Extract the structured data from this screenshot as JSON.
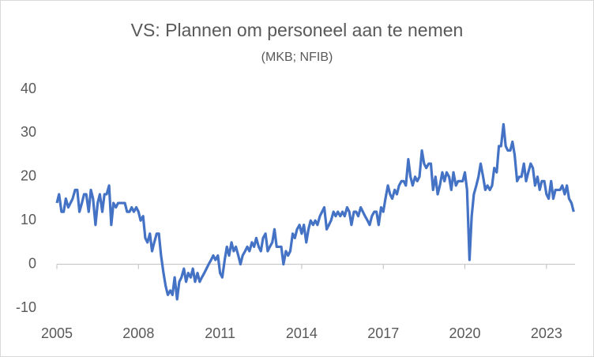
{
  "chart_data": {
    "type": "line",
    "title": "VS: Plannen om personeel aan te nemen",
    "subtitle": "(MKB; NFIB)",
    "xlim": [
      2005,
      2024.05
    ],
    "xticks": [
      2005,
      2008,
      2011,
      2014,
      2017,
      2020,
      2023
    ],
    "ylim": [
      -10,
      40
    ],
    "yticks": [
      -10,
      0,
      10,
      20,
      30,
      40
    ],
    "grid": false,
    "series": [
      {
        "color": "#4472c4",
        "x": [
          2005.0,
          2005.08,
          2005.17,
          2005.25,
          2005.33,
          2005.42,
          2005.5,
          2005.58,
          2005.67,
          2005.75,
          2005.83,
          2005.92,
          2006.0,
          2006.08,
          2006.17,
          2006.25,
          2006.33,
          2006.42,
          2006.5,
          2006.58,
          2006.67,
          2006.75,
          2006.83,
          2006.92,
          2007.0,
          2007.08,
          2007.17,
          2007.25,
          2007.33,
          2007.42,
          2007.5,
          2007.58,
          2007.67,
          2007.75,
          2007.83,
          2007.92,
          2008.0,
          2008.08,
          2008.17,
          2008.25,
          2008.33,
          2008.42,
          2008.5,
          2008.58,
          2008.67,
          2008.75,
          2008.83,
          2008.92,
          2009.0,
          2009.08,
          2009.17,
          2009.25,
          2009.33,
          2009.42,
          2009.5,
          2009.58,
          2009.67,
          2009.75,
          2009.83,
          2009.92,
          2010.0,
          2010.08,
          2010.17,
          2010.25,
          2010.33,
          2010.42,
          2010.5,
          2010.58,
          2010.67,
          2010.75,
          2010.83,
          2010.92,
          2011.0,
          2011.08,
          2011.17,
          2011.25,
          2011.33,
          2011.42,
          2011.5,
          2011.58,
          2011.67,
          2011.75,
          2011.83,
          2011.92,
          2012.0,
          2012.08,
          2012.17,
          2012.25,
          2012.33,
          2012.42,
          2012.5,
          2012.58,
          2012.67,
          2012.75,
          2012.83,
          2012.92,
          2013.0,
          2013.08,
          2013.17,
          2013.25,
          2013.33,
          2013.42,
          2013.5,
          2013.58,
          2013.67,
          2013.75,
          2013.83,
          2013.92,
          2014.0,
          2014.08,
          2014.17,
          2014.25,
          2014.33,
          2014.42,
          2014.5,
          2014.58,
          2014.67,
          2014.75,
          2014.83,
          2014.92,
          2015.0,
          2015.08,
          2015.17,
          2015.25,
          2015.33,
          2015.42,
          2015.5,
          2015.58,
          2015.67,
          2015.75,
          2015.83,
          2015.92,
          2016.0,
          2016.08,
          2016.17,
          2016.25,
          2016.33,
          2016.42,
          2016.5,
          2016.58,
          2016.67,
          2016.75,
          2016.83,
          2016.92,
          2017.0,
          2017.08,
          2017.17,
          2017.25,
          2017.33,
          2017.42,
          2017.5,
          2017.58,
          2017.67,
          2017.75,
          2017.83,
          2017.92,
          2018.0,
          2018.08,
          2018.17,
          2018.25,
          2018.33,
          2018.42,
          2018.5,
          2018.58,
          2018.67,
          2018.75,
          2018.83,
          2018.92,
          2019.0,
          2019.08,
          2019.17,
          2019.25,
          2019.33,
          2019.42,
          2019.5,
          2019.58,
          2019.67,
          2019.75,
          2019.83,
          2019.92,
          2020.0,
          2020.08,
          2020.17,
          2020.25,
          2020.33,
          2020.42,
          2020.5,
          2020.58,
          2020.67,
          2020.75,
          2020.83,
          2020.92,
          2021.0,
          2021.08,
          2021.17,
          2021.25,
          2021.33,
          2021.42,
          2021.5,
          2021.58,
          2021.67,
          2021.75,
          2021.83,
          2021.92,
          2022.0,
          2022.08,
          2022.17,
          2022.25,
          2022.33,
          2022.42,
          2022.5,
          2022.58,
          2022.67,
          2022.75,
          2022.83,
          2022.92,
          2023.0,
          2023.08,
          2023.17,
          2023.25,
          2023.33,
          2023.42,
          2023.5,
          2023.58,
          2023.67,
          2023.75,
          2023.83,
          2023.92,
          2024.0
        ],
        "values": [
          14,
          16,
          12,
          12,
          15,
          13,
          14,
          15,
          17,
          17,
          12,
          14,
          16,
          16,
          12,
          17,
          15,
          9,
          14,
          16,
          12,
          16,
          16,
          18,
          9,
          14,
          13,
          14,
          14,
          14,
          14,
          12,
          12,
          13,
          12,
          13,
          12,
          10,
          11,
          6,
          5,
          7,
          3,
          5,
          7,
          7,
          2,
          -2,
          -5,
          -7,
          -6,
          -7,
          -3,
          -8,
          -4,
          -3,
          -1,
          -4,
          -2,
          -3,
          -1,
          -4,
          -2,
          -4,
          -3,
          -2,
          -1,
          0,
          1,
          2,
          1,
          2,
          -2,
          -3,
          1,
          4,
          2,
          5,
          3,
          4,
          2,
          0,
          2,
          3,
          4,
          3,
          5,
          4,
          6,
          4,
          3,
          6,
          7,
          3,
          4,
          5,
          8,
          4,
          4,
          4,
          0,
          3,
          2,
          3,
          7,
          6,
          8,
          9,
          7,
          9,
          5,
          8,
          10,
          9,
          10,
          9,
          11,
          12,
          13,
          8,
          9,
          10,
          12,
          11,
          12,
          11,
          12,
          11,
          13,
          12,
          9,
          12,
          12,
          11,
          13,
          12,
          11,
          10,
          9,
          11,
          12,
          12,
          9,
          13,
          12,
          15,
          18,
          16,
          15,
          17,
          16,
          18,
          19,
          19,
          18,
          24,
          20,
          18,
          20,
          19,
          20,
          26,
          23,
          22,
          23,
          23,
          17,
          20,
          16,
          18,
          21,
          19,
          21,
          20,
          17,
          21,
          18,
          19,
          19,
          19,
          21,
          17,
          1,
          11,
          16,
          18,
          20,
          23,
          20,
          17,
          18,
          17,
          18,
          22,
          21,
          27,
          27,
          32,
          27,
          26,
          26,
          28,
          25,
          19,
          20,
          20,
          23,
          19,
          21,
          23,
          22,
          18,
          20,
          17,
          19,
          19,
          16,
          15,
          19,
          15,
          17,
          17,
          17,
          18,
          16,
          18,
          15,
          14,
          12
        ]
      }
    ]
  }
}
